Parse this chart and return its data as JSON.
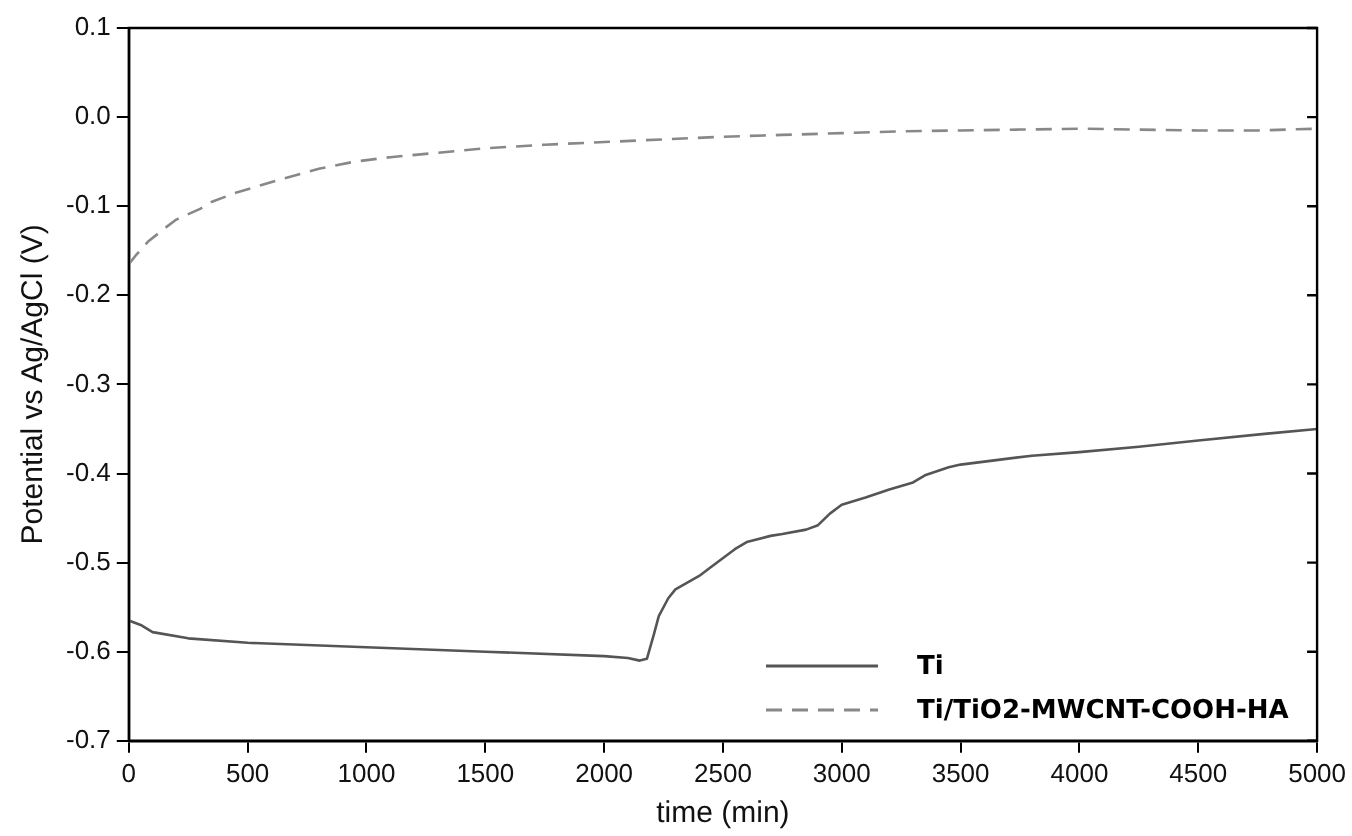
{
  "chart_data": {
    "type": "line",
    "xlabel": "time (min)",
    "ylabel": "Potential vs Ag/AgCl (V)",
    "xlim": [
      0,
      5000
    ],
    "xticks": [
      0,
      500,
      1000,
      1500,
      2000,
      2500,
      3000,
      3500,
      4000,
      4500,
      5000
    ],
    "ylim": [
      -0.7,
      0.1
    ],
    "yticks": [
      {
        "value": -0.7,
        "label": "-0.7"
      },
      {
        "value": -0.6,
        "label": "-0.6"
      },
      {
        "value": -0.5,
        "label": "-0.5"
      },
      {
        "value": -0.4,
        "label": "-0.4"
      },
      {
        "value": -0.3,
        "label": "-0.3"
      },
      {
        "value": -0.2,
        "label": "-0.2"
      },
      {
        "value": -0.1,
        "label": "-0.1"
      },
      {
        "value": 0,
        "label": "0.0"
      },
      {
        "value": 0.1,
        "label": "0.1"
      }
    ],
    "grid": false,
    "legend": "bottom right",
    "marker": "none",
    "series": [
      {
        "name": "Ti",
        "color": "#555555",
        "line_style": "solid",
        "x": [
          0,
          50,
          100,
          250,
          500,
          1000,
          1500,
          2000,
          2100,
          2150,
          2180,
          2210,
          2230,
          2270,
          2300,
          2400,
          2450,
          2550,
          2600,
          2700,
          2750,
          2850,
          2900,
          2950,
          3000,
          3100,
          3200,
          3300,
          3350,
          3450,
          3500,
          3650,
          3800,
          4000,
          4250,
          4500,
          4800,
          5000
        ],
        "values": [
          -0.565,
          -0.57,
          -0.578,
          -0.585,
          -0.59,
          -0.595,
          -0.6,
          -0.605,
          -0.607,
          -0.61,
          -0.608,
          -0.58,
          -0.56,
          -0.54,
          -0.53,
          -0.515,
          -0.505,
          -0.485,
          -0.477,
          -0.47,
          -0.468,
          -0.463,
          -0.458,
          -0.445,
          -0.435,
          -0.427,
          -0.418,
          -0.41,
          -0.402,
          -0.393,
          -0.39,
          -0.385,
          -0.38,
          -0.376,
          -0.37,
          -0.363,
          -0.355,
          -0.35
        ]
      },
      {
        "name": "Ti/TiO2-MWCNT-COOH-HA",
        "color": "#888888",
        "line_style": "dashed",
        "x": [
          0,
          30,
          80,
          150,
          200,
          300,
          350,
          450,
          550,
          650,
          800,
          950,
          1100,
          1300,
          1500,
          1750,
          2000,
          2250,
          2500,
          2750,
          3000,
          3250,
          3500,
          3750,
          4000,
          4250,
          4500,
          4750,
          5000
        ],
        "values": [
          -0.165,
          -0.155,
          -0.14,
          -0.125,
          -0.115,
          -0.103,
          -0.095,
          -0.085,
          -0.077,
          -0.069,
          -0.058,
          -0.05,
          -0.045,
          -0.04,
          -0.035,
          -0.031,
          -0.028,
          -0.025,
          -0.022,
          -0.02,
          -0.018,
          -0.016,
          -0.015,
          -0.014,
          -0.013,
          -0.014,
          -0.015,
          -0.015,
          -0.013
        ]
      }
    ]
  }
}
